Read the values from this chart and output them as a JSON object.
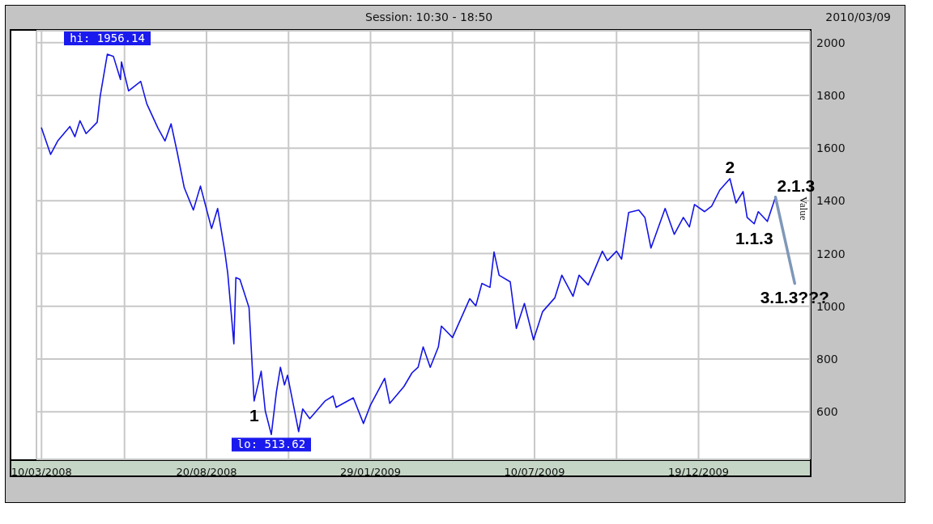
{
  "chart_data": {
    "type": "line",
    "ylabel": "Value",
    "annotations": [
      "Session: 10:30 - 18:50",
      "2010/03/09",
      {
        "text": "hi: 1956.14",
        "x": "2008-05-14",
        "y": 1956
      },
      {
        "text": "lo: 513.62",
        "x": "2008-10-23",
        "y": 514
      },
      {
        "text": "1",
        "x": "2008-10-06",
        "y": 641
      },
      {
        "text": "2",
        "x": "2010-01-19",
        "y": 1484
      },
      {
        "text": "2.1.3",
        "x": "2010-03-05",
        "y": 1414
      },
      {
        "text": "1.1.3",
        "x": "2010-02-12",
        "y": 1313
      },
      {
        "text": "3.1.3???",
        "x": "2010-03-24",
        "y": 1087
      }
    ],
    "x": [
      "2008-03-10",
      "2008-03-19",
      "2008-03-26",
      "2008-04-07",
      "2008-04-12",
      "2008-04-17",
      "2008-04-23",
      "2008-05-04",
      "2008-05-07",
      "2008-05-14",
      "2008-05-20",
      "2008-05-27",
      "2008-05-28",
      "2008-06-04",
      "2008-06-16",
      "2008-06-22",
      "2008-07-03",
      "2008-07-10",
      "2008-07-16",
      "2008-07-22",
      "2008-07-29",
      "2008-08-07",
      "2008-08-14",
      "2008-08-25",
      "2008-08-31",
      "2008-09-07",
      "2008-09-10",
      "2008-09-16",
      "2008-09-18",
      "2008-09-22",
      "2008-10-01",
      "2008-10-06",
      "2008-10-13",
      "2008-10-17",
      "2008-10-23",
      "2008-10-28",
      "2008-11-01",
      "2008-11-05",
      "2008-11-08",
      "2008-11-19",
      "2008-11-23",
      "2008-11-30",
      "2008-12-15",
      "2008-12-23",
      "2008-12-26",
      "2009-01-12",
      "2009-01-22",
      "2009-01-29",
      "2009-02-12",
      "2009-02-17",
      "2009-03-03",
      "2009-03-11",
      "2009-03-17",
      "2009-03-22",
      "2009-03-29",
      "2009-04-06",
      "2009-04-09",
      "2009-04-20",
      "2009-05-07",
      "2009-05-13",
      "2009-05-19",
      "2009-05-27",
      "2009-05-31",
      "2009-06-05",
      "2009-06-16",
      "2009-06-22",
      "2009-06-30",
      "2009-07-09",
      "2009-07-18",
      "2009-07-30",
      "2009-08-06",
      "2009-08-17",
      "2009-08-23",
      "2009-09-01",
      "2009-09-15",
      "2009-09-20",
      "2009-09-29",
      "2009-10-04",
      "2009-10-11",
      "2009-10-21",
      "2009-10-27",
      "2009-11-02",
      "2009-11-16",
      "2009-11-25",
      "2009-12-04",
      "2009-12-10",
      "2009-12-15",
      "2009-12-25",
      "2010-01-01",
      "2010-01-09",
      "2010-01-19",
      "2010-01-25",
      "2010-02-01",
      "2010-02-05",
      "2010-02-12",
      "2010-02-16",
      "2010-02-25",
      "2010-03-05"
    ],
    "series": [
      {
        "color": "#1414e6",
        "values": [
          1676,
          1576,
          1627,
          1682,
          1643,
          1704,
          1655,
          1698,
          1798,
          1956,
          1948,
          1860,
          1927,
          1817,
          1853,
          1768,
          1676,
          1627,
          1692,
          1585,
          1450,
          1365,
          1456,
          1295,
          1371,
          1209,
          1124,
          858,
          1109,
          1102,
          995,
          641,
          754,
          604,
          514,
          675,
          769,
          702,
          739,
          525,
          611,
          574,
          641,
          660,
          617,
          653,
          556,
          626,
          727,
          632,
          696,
          748,
          769,
          846,
          769,
          846,
          925,
          882,
          1029,
          1002,
          1087,
          1072,
          1206,
          1118,
          1093,
          916,
          1011,
          873,
          980,
          1032,
          1118,
          1038,
          1118,
          1081,
          1209,
          1173,
          1209,
          1179,
          1356,
          1365,
          1337,
          1221,
          1371,
          1273,
          1337,
          1301,
          1386,
          1359,
          1380,
          1441,
          1484,
          1392,
          1435,
          1337,
          1313,
          1359,
          1322,
          1414
        ]
      },
      {
        "type": "line",
        "color": "#7f98b8",
        "x": [
          "2010-03-05",
          "2010-03-24"
        ],
        "values": [
          1414,
          1087
        ]
      }
    ],
    "xlim": [
      "2008-03-05",
      "2010-04-08"
    ],
    "xticks": [
      {
        "value": "2008-03-10",
        "label": "10/03/2008"
      },
      {
        "value": "2008-05-31",
        "label": null
      },
      {
        "value": "2008-08-20",
        "label": "20/08/2008"
      },
      {
        "value": "2008-11-09",
        "label": null
      },
      {
        "value": "2009-01-29",
        "label": "29/01/2009"
      },
      {
        "value": "2009-04-20",
        "label": null
      },
      {
        "value": "2009-07-10",
        "label": "10/07/2009"
      },
      {
        "value": "2009-09-29",
        "label": null
      },
      {
        "value": "2009-12-19",
        "label": "19/12/2009"
      }
    ],
    "ylim": [
      420,
      2045
    ],
    "yticks": [
      600,
      800,
      1000,
      1200,
      1400,
      1600,
      1800,
      2000
    ],
    "grid": true,
    "line_style": "solid",
    "marker": "none"
  }
}
